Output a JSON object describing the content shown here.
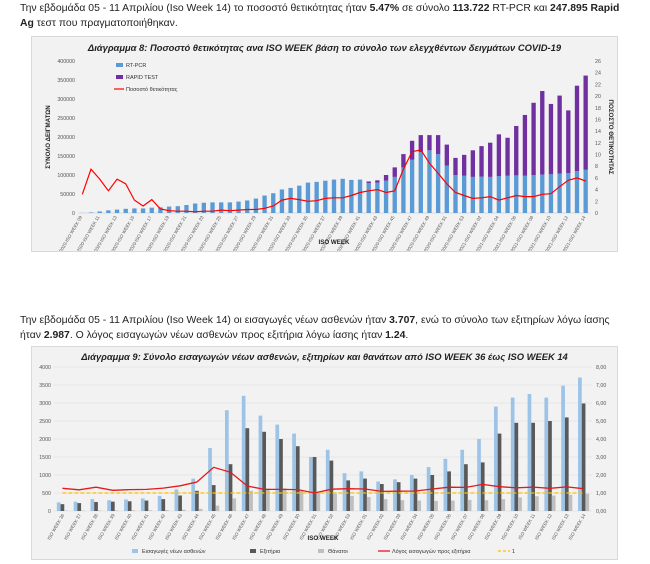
{
  "para1": {
    "t1": "Την εβδομάδα 05 - 11 Απριλίου (Iso Week 14) το ποσοστό θετικότητας ήταν ",
    "b1": "5.47%",
    "t2": " σε σύνολο ",
    "b2": "113.722",
    "t3": " RT-PCR και ",
    "b3": "247.895 Rapid Ag",
    "t4": " τεστ που πραγματοποιήθηκαν."
  },
  "para2": {
    "t1": "Την εβδομάδα 05 - 11 Απριλίου (Iso Week 14) οι εισαγωγές νέων ασθενών ήταν ",
    "b1": "3.707",
    "t2": ", ενώ το σύνολο των εξιτηρίων λόγω ίασης ήταν ",
    "b2": "2.987",
    "t3": ". Ο λόγος εισαγωγών νέων ασθενών προς εξιτήρια λόγω ίασης ήταν ",
    "b3": "1.24",
    "t4": "."
  },
  "colors": {
    "rtpcr": "#5b9bd5",
    "rapid": "#7030a0",
    "positivity": "#ff0000",
    "admissions": "#9dc3e6",
    "discharges": "#595959",
    "deaths": "#bfbfbf",
    "ratio": "#e31a1c",
    "one": "#ffc000"
  },
  "chart_data": [
    {
      "type": "bar",
      "title": "Διάγραμμα 8: Ποσοστό θετικότητας ανα ISO WEEK βάση το σύνολο των ελεγχθέντων δειγμάτων COVID-19",
      "xlabel": "ISO WEEK",
      "ylabel": "ΣΥΝΟΛΟ ΔΕΙΓΜΑΤΩΝ",
      "y2label": "ΠΟΣΟΣΤΟ ΘΕΤΙΚΟΤΗΤΑΣ",
      "ylim": [
        0,
        400000
      ],
      "yticks": [
        "0",
        "50000",
        "100000",
        "150000",
        "200000",
        "250000",
        "300000",
        "350000",
        "400000"
      ],
      "y2lim": [
        0,
        26
      ],
      "y2ticks": [
        "0",
        "2",
        "4",
        "6",
        "8",
        "10",
        "12",
        "14",
        "16",
        "18",
        "20",
        "22",
        "24",
        "26"
      ],
      "legend": [
        "RT-PCR",
        "RAPID TEST",
        "Ποσοστό θετικότητας"
      ],
      "categories": [
        "2020-ISO WEEK 09",
        "2020-ISO WEEK 10",
        "2020-ISO WEEK 11",
        "2020-ISO WEEK 12",
        "2020-ISO WEEK 13",
        "2020-ISO WEEK 14",
        "2020-ISO WEEK 15",
        "2020-ISO WEEK 16",
        "2020-ISO WEEK 17",
        "2020-ISO WEEK 18",
        "2020-ISO WEEK 19",
        "2020-ISO WEEK 20",
        "2020-ISO WEEK 21",
        "2020-ISO WEEK 22",
        "2020-ISO WEEK 23",
        "2020-ISO WEEK 24",
        "2020-ISO WEEK 25",
        "2020-ISO WEEK 26",
        "2020-ISO WEEK 27",
        "2020-ISO WEEK 28",
        "2020-ISO WEEK 29",
        "2020-ISO WEEK 30",
        "2020-ISO WEEK 31",
        "2020-ISO WEEK 32",
        "2020-ISO WEEK 33",
        "2020-ISO WEEK 34",
        "2020-ISO WEEK 35",
        "2020-ISO WEEK 36",
        "2020-ISO WEEK 37",
        "2020-ISO WEEK 38",
        "2020-ISO WEEK 39",
        "2020-ISO WEEK 40",
        "2020-ISO WEEK 41",
        "2020-ISO WEEK 42",
        "2020-ISO WEEK 43",
        "2020-ISO WEEK 44",
        "2020-ISO WEEK 45",
        "2020-ISO WEEK 46",
        "2020-ISO WEEK 47",
        "2020-ISO WEEK 48",
        "2020-ISO WEEK 49",
        "2020-ISO WEEK 50",
        "2020-ISO WEEK 51",
        "2020-ISO WEEK 52",
        "2020-ISO WEEK 53",
        "2021-ISO WEEK 01",
        "2021-ISO WEEK 02",
        "2021-ISO WEEK 03",
        "2021-ISO WEEK 04",
        "2021-ISO WEEK 05",
        "2021-ISO WEEK 06",
        "2021-ISO WEEK 07",
        "2021-ISO WEEK 08",
        "2021-ISO WEEK 09",
        "2021-ISO WEEK 10",
        "2021-ISO WEEK 11",
        "2021-ISO WEEK 12",
        "2021-ISO WEEK 13",
        "2021-ISO WEEK 14"
      ],
      "xtick_labels": [
        "2020-ISO WEEK 09",
        "2020-ISO WEEK 11",
        "2020-ISO WEEK 13",
        "2020-ISO WEEK 15",
        "2020-ISO WEEK 17",
        "2020-ISO WEEK 19",
        "2020-ISO WEEK 21",
        "2020-ISO WEEK 23",
        "2020-ISO WEEK 25",
        "2020-ISO WEEK 27",
        "2020-ISO WEEK 29",
        "2020-ISO WEEK 31",
        "2020-ISO WEEK 33",
        "2020-ISO WEEK 35",
        "2020-ISO WEEK 37",
        "2020-ISO WEEK 39",
        "2020-ISO WEEK 41",
        "2020-ISO WEEK 43",
        "2020-ISO WEEK 45",
        "2020-ISO WEEK 47",
        "2020-ISO WEEK 49",
        "2020-ISO WEEK 51",
        "2020-ISO WEEK 53",
        "2021-ISO WEEK 02",
        "2021-ISO WEEK 04",
        "2021-ISO WEEK 06",
        "2021-ISO WEEK 08",
        "2021-ISO WEEK 10",
        "2021-ISO WEEK 12",
        "2021-ISO WEEK 14"
      ],
      "series": [
        {
          "name": "RT-PCR",
          "kind": "bar",
          "axis": "left",
          "values": [
            200,
            1500,
            4000,
            7000,
            9000,
            11000,
            12000,
            12000,
            14000,
            15000,
            17000,
            18000,
            21000,
            25000,
            27000,
            28000,
            28000,
            28000,
            30000,
            33000,
            38000,
            46000,
            52000,
            62000,
            66000,
            72000,
            80000,
            82000,
            85000,
            88000,
            90000,
            87000,
            88000,
            79000,
            80000,
            85000,
            95000,
            120000,
            140000,
            160000,
            165000,
            155000,
            125000,
            100000,
            98000,
            95000,
            96000,
            95000,
            97000,
            98000,
            99000,
            98000,
            100000,
            101000,
            102000,
            104000,
            105000,
            110000,
            113722
          ]
        },
        {
          "name": "RAPID TEST",
          "kind": "bar",
          "axis": "left",
          "values": [
            0,
            0,
            0,
            0,
            0,
            0,
            0,
            0,
            0,
            0,
            0,
            0,
            0,
            0,
            0,
            0,
            0,
            0,
            0,
            0,
            0,
            0,
            0,
            0,
            0,
            0,
            0,
            0,
            0,
            0,
            0,
            0,
            0,
            4000,
            6000,
            15000,
            25000,
            35000,
            50000,
            45000,
            40000,
            50000,
            55000,
            45000,
            55000,
            70000,
            80000,
            90000,
            110000,
            100000,
            130000,
            160000,
            190000,
            220000,
            185000,
            205000,
            165000,
            225000,
            247895
          ]
        },
        {
          "name": "Ποσοστό θετικότητας",
          "kind": "line",
          "axis": "right",
          "values": [
            3.2,
            7.5,
            5.8,
            3.8,
            5.8,
            5.0,
            2.2,
            1.2,
            2.3,
            0.7,
            0.4,
            0.3,
            0.3,
            0.2,
            0.3,
            0.3,
            0.5,
            0.4,
            0.5,
            0.6,
            0.6,
            0.8,
            1.2,
            2.2,
            2.5,
            2.3,
            2.0,
            2.1,
            2.5,
            2.6,
            2.6,
            3.0,
            3.5,
            3.8,
            4.0,
            3.5,
            3.8,
            7.5,
            10.5,
            10.8,
            8.5,
            6.8,
            5.0,
            3.5,
            3.0,
            2.5,
            2.6,
            2.8,
            2.2,
            2.6,
            3.0,
            2.8,
            2.8,
            3.2,
            3.3,
            4.5,
            5.6,
            6.0,
            5.47
          ]
        }
      ]
    },
    {
      "type": "bar",
      "title": "Διάγραμμα 9: Σύνολο εισαγωγών νέων ασθενών, εξιτηρίων και θανάτων από ISO WEEK 36 έως ISO WEEK 14",
      "xlabel": "ISO WEEK",
      "ylim": [
        0,
        4000
      ],
      "yticks": [
        "0",
        "500",
        "1000",
        "1500",
        "2000",
        "2500",
        "3000",
        "3500",
        "4000"
      ],
      "y2lim": [
        0,
        8
      ],
      "y2ticks": [
        "0,00",
        "1,00",
        "2,00",
        "3,00",
        "4,00",
        "5,00",
        "6,00",
        "7,00",
        "8,00"
      ],
      "legend": [
        "Εισαγωγές νέων ασθενών",
        "Εξιτήρια",
        "Θάνατοι",
        "Λόγος εισαγωγών προς εξιτήρια",
        "1"
      ],
      "categories": [
        "ISO WEEK 36",
        "ISO WEEK 37",
        "ISO WEEK 38",
        "ISO WEEK 39",
        "ISO WEEK 40",
        "ISO WEEK 41",
        "ISO WEEK 42",
        "ISO WEEK 43",
        "ISO WEEK 44",
        "ISO WEEK 45",
        "ISO WEEK 46",
        "ISO WEEK 47",
        "ISO WEEK 48",
        "ISO WEEK 49",
        "ISO WEEK 50",
        "ISO WEEK 51",
        "ISO WEEK 52",
        "ISO WEEK 53",
        "ISO WEEK 01",
        "ISO WEEK 02",
        "ISO WEEK 03",
        "ISO WEEK 04",
        "ISO WEEK 05",
        "ISO WEEK 06",
        "ISO WEEK 07",
        "ISO WEEK 08",
        "ISO WEEK 09",
        "ISO WEEK 10",
        "ISO WEEK 11",
        "ISO WEEK 12",
        "ISO WEEK 13",
        "ISO WEEK 14"
      ],
      "series": [
        {
          "name": "Εισαγωγές νέων ασθενών",
          "kind": "bar",
          "axis": "left",
          "values": [
            240,
            260,
            330,
            300,
            320,
            350,
            420,
            600,
            900,
            1750,
            2800,
            3200,
            2650,
            2400,
            2150,
            1500,
            1700,
            1050,
            1100,
            820,
            880,
            1000,
            1220,
            1450,
            1700,
            2000,
            2900,
            3150,
            3250,
            3150,
            3480,
            3707
          ]
        },
        {
          "name": "Εξιτήρια",
          "kind": "bar",
          "axis": "left",
          "values": [
            190,
            220,
            250,
            260,
            270,
            290,
            330,
            430,
            560,
            720,
            1300,
            2300,
            2200,
            2000,
            1800,
            1500,
            1400,
            850,
            900,
            750,
            800,
            900,
            1000,
            1100,
            1300,
            1350,
            2150,
            2450,
            2450,
            2500,
            2600,
            2987
          ]
        },
        {
          "name": "Θάνατοι",
          "kind": "bar",
          "axis": "left",
          "values": [
            10,
            12,
            15,
            15,
            18,
            20,
            25,
            35,
            60,
            150,
            350,
            560,
            620,
            630,
            580,
            500,
            480,
            420,
            390,
            330,
            300,
            290,
            280,
            290,
            310,
            300,
            330,
            380,
            410,
            430,
            450,
            480
          ]
        },
        {
          "name": "Λόγος εισαγωγών προς εξιτήρια",
          "kind": "line",
          "axis": "right",
          "values": [
            1.26,
            1.18,
            1.32,
            1.15,
            1.19,
            1.2,
            1.27,
            1.4,
            1.61,
            2.43,
            2.15,
            1.39,
            1.2,
            1.2,
            1.19,
            1.0,
            1.21,
            1.24,
            1.22,
            1.09,
            1.1,
            1.11,
            1.22,
            1.32,
            1.31,
            1.48,
            1.35,
            1.29,
            1.33,
            1.26,
            1.34,
            1.24
          ]
        },
        {
          "name": "1",
          "kind": "line",
          "axis": "right",
          "dashed": true,
          "values": [
            1,
            1,
            1,
            1,
            1,
            1,
            1,
            1,
            1,
            1,
            1,
            1,
            1,
            1,
            1,
            1,
            1,
            1,
            1,
            1,
            1,
            1,
            1,
            1,
            1,
            1,
            1,
            1,
            1,
            1,
            1,
            1
          ]
        }
      ]
    }
  ]
}
